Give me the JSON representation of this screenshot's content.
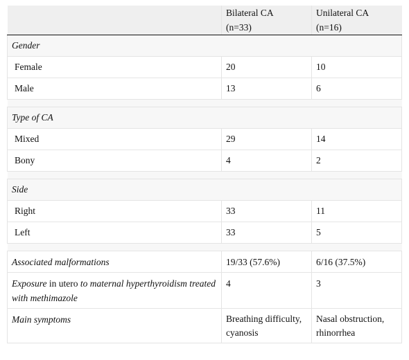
{
  "header": {
    "col1": "",
    "col2_line1": "Bilateral CA",
    "col2_line2": "(n=33)",
    "col3_line1": "Unilateral CA",
    "col3_line2": "(n=16)"
  },
  "sections": [
    {
      "title": "Gender",
      "rows": [
        {
          "label": "Female",
          "bilateral": "20",
          "unilateral": "10"
        },
        {
          "label": "Male",
          "bilateral": "13",
          "unilateral": "6"
        }
      ]
    },
    {
      "title": "Type of CA",
      "rows": [
        {
          "label": "Mixed",
          "bilateral": "29",
          "unilateral": "14"
        },
        {
          "label": "Bony",
          "bilateral": "4",
          "unilateral": "2"
        }
      ]
    },
    {
      "title": "Side",
      "rows": [
        {
          "label": "Right",
          "bilateral": "33",
          "unilateral": "11"
        },
        {
          "label": "Left",
          "bilateral": "33",
          "unilateral": "5"
        }
      ]
    }
  ],
  "features": {
    "associated": {
      "label": "Associated malformations",
      "bilateral": "19/33 (57.6%)",
      "unilateral": "6/16 (37.5%)"
    },
    "exposure": {
      "label_part1": "Exposure",
      "label_part2": " in utero ",
      "label_part3": "to maternal hyperthyroidism treated with methimazole",
      "bilateral": "4",
      "unilateral": "3"
    },
    "symptoms": {
      "label": "Main symptoms",
      "bilateral": "Breathing difficulty, cyanosis",
      "unilateral": "Nasal obstruction, rhinorrhea"
    }
  }
}
